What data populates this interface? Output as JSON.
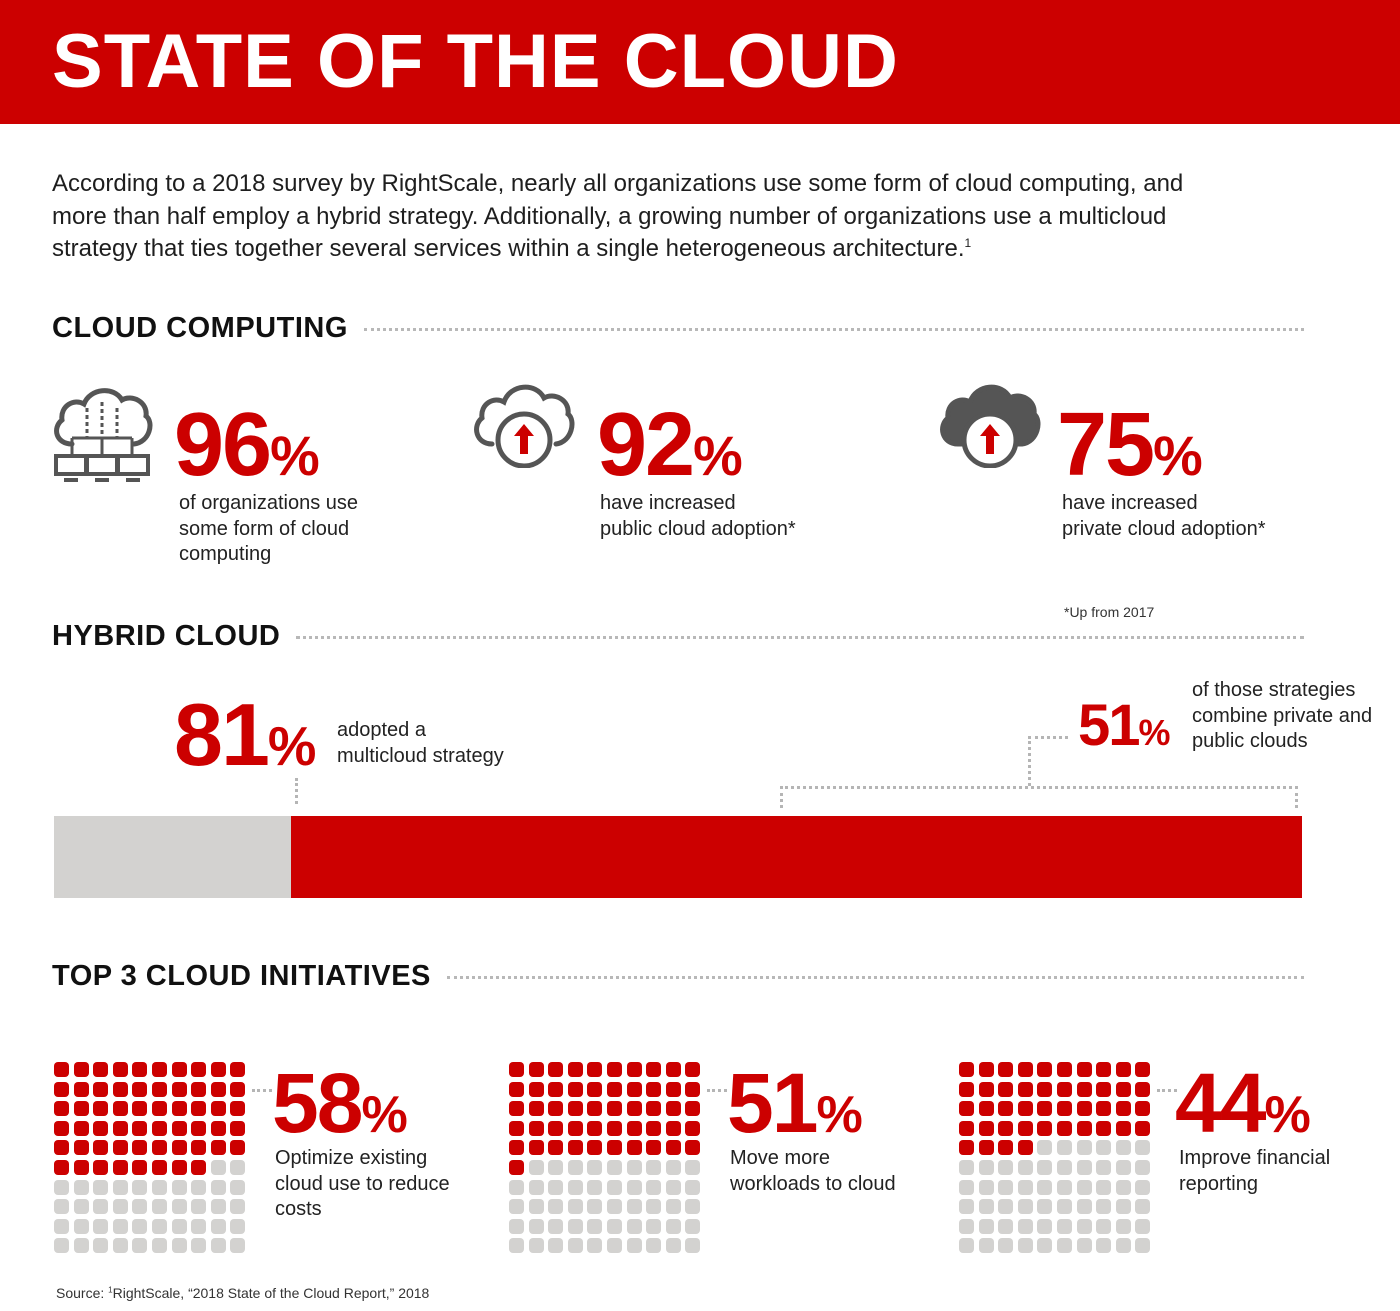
{
  "header": {
    "title": "STATE OF THE CLOUD"
  },
  "intro": {
    "line1": "According to a 2018 survey by RightScale, nearly all organizations use some form of cloud computing, and",
    "line2": "more than half employ a hybrid strategy. Additionally, a growing number of organizations use a multicloud",
    "line3": "strategy that ties together several services within a single heterogeneous architecture.",
    "footnote_ref": "1"
  },
  "cloud_computing": {
    "heading": "CLOUD COMPUTING",
    "stats": [
      {
        "icon": "cloud-network-icon",
        "number": "96",
        "unit": "%",
        "desc_lines": [
          "of organizations use",
          "some form of cloud",
          "computing"
        ]
      },
      {
        "icon": "public-cloud-upload-icon",
        "number": "92",
        "unit": "%",
        "desc_lines": [
          "have increased",
          "public cloud adoption*"
        ]
      },
      {
        "icon": "private-cloud-upload-icon",
        "number": "75",
        "unit": "%",
        "desc_lines": [
          "have increased",
          "private cloud adoption*"
        ]
      }
    ],
    "footnote": "*Up from 2017"
  },
  "hybrid_cloud": {
    "heading": "HYBRID CLOUD",
    "multicloud": {
      "number": "81",
      "unit": "%",
      "desc_lines": [
        "adopted a",
        "multicloud strategy"
      ],
      "share": 0.81
    },
    "private_public": {
      "number": "51",
      "unit": "%",
      "desc_lines": [
        "of those strategies",
        "combine private and",
        "public clouds"
      ],
      "share": 0.51
    },
    "colors": {
      "bar": "#cc0000",
      "remainder": "#d3d2d0"
    }
  },
  "initiatives": {
    "heading": "TOP 3 CLOUD INITIATIVES",
    "items": [
      {
        "number": "58",
        "unit": "%",
        "filled": 58,
        "total": 100,
        "desc_lines": [
          "Optimize existing",
          "cloud use to reduce",
          "costs"
        ]
      },
      {
        "number": "51",
        "unit": "%",
        "filled": 51,
        "total": 100,
        "desc_lines": [
          "Move more",
          "workloads to cloud"
        ]
      },
      {
        "number": "44",
        "unit": "%",
        "filled": 44,
        "total": 100,
        "desc_lines": [
          "Improve financial",
          "reporting"
        ]
      }
    ],
    "colors": {
      "filled": "#cc0000",
      "empty": "#d3d2d0"
    }
  },
  "source": {
    "prefix": "Source: ",
    "ref": "1",
    "text": "RightScale, “2018 State of the Cloud Report,” 2018"
  }
}
